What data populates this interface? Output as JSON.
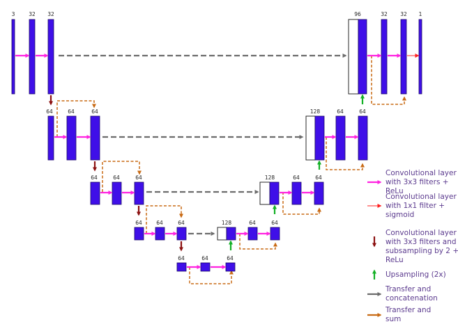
{
  "colors": {
    "block": "#3f0fe8",
    "block_edge": "#1c0a66",
    "conv": "#ff22e0",
    "conv1x1": "#ff2020",
    "down": "#8b1010",
    "up": "#12b024",
    "concat": "#6b6b6b",
    "sum": "#c86a14",
    "legend_text": "#5b3a8e"
  },
  "channels": {
    "l1": [
      "3",
      "32",
      "32"
    ],
    "l2": [
      "64",
      "64",
      "64"
    ],
    "l3": [
      "64",
      "64",
      "64"
    ],
    "l4": [
      "64",
      "64",
      "64"
    ],
    "l5": [
      "64",
      "64",
      "64"
    ],
    "r4": [
      "128",
      "64",
      "64"
    ],
    "r3": [
      "128",
      "64",
      "64"
    ],
    "r2": [
      "128",
      "64",
      "64"
    ],
    "r1": [
      "96",
      "32",
      "32",
      "1"
    ]
  },
  "legend": {
    "conv3x3": [
      "Convolutional layer",
      "with 3x3 filters +",
      "ReLu"
    ],
    "conv1x1": [
      "Convolutional layer",
      "with 1x1 filter +",
      "sigmoid"
    ],
    "down": [
      "Convolutional layer",
      "with 3x3 filters and",
      "subsampling by 2 +",
      "ReLu"
    ],
    "up": [
      "Upsampling (2x)"
    ],
    "concat": [
      "Transfer and",
      "concatenation"
    ],
    "sum": [
      "Transfer and",
      "sum"
    ]
  }
}
